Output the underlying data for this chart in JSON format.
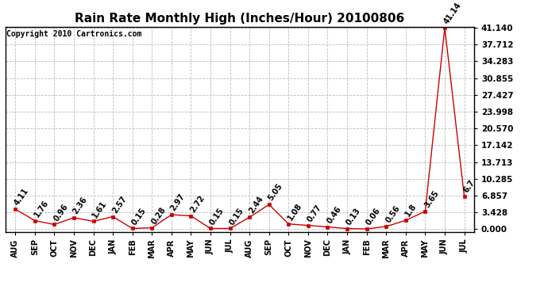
{
  "title": "Rain Rate Monthly High (Inches/Hour) 20100806",
  "copyright": "Copyright 2010 Cartronics.com",
  "labels": [
    "AUG",
    "SEP",
    "OCT",
    "NOV",
    "DEC",
    "JAN",
    "FEB",
    "MAR",
    "APR",
    "MAY",
    "JUN",
    "JUL",
    "AUG",
    "SEP",
    "OCT",
    "NOV",
    "DEC",
    "JAN",
    "FEB",
    "MAR",
    "APR",
    "MAY",
    "JUN",
    "JUL"
  ],
  "values": [
    4.11,
    1.76,
    0.96,
    2.36,
    1.61,
    2.57,
    0.15,
    0.28,
    2.97,
    2.72,
    0.15,
    0.15,
    2.44,
    5.05,
    1.08,
    0.77,
    0.46,
    0.13,
    0.06,
    0.56,
    1.8,
    3.65,
    41.14,
    6.7
  ],
  "line_color": "#cc0000",
  "marker_color": "#cc0000",
  "bg_color": "#ffffff",
  "grid_color": "#bbbbbb",
  "yticks": [
    0.0,
    3.428,
    6.857,
    10.285,
    13.713,
    17.142,
    20.57,
    23.998,
    27.427,
    30.855,
    34.283,
    37.712,
    41.14
  ],
  "ymax": 41.14,
  "title_fontsize": 11,
  "copyright_fontsize": 7,
  "annotation_fontsize": 7,
  "xlabel_fontsize": 7,
  "ylabel_fontsize": 7.5
}
